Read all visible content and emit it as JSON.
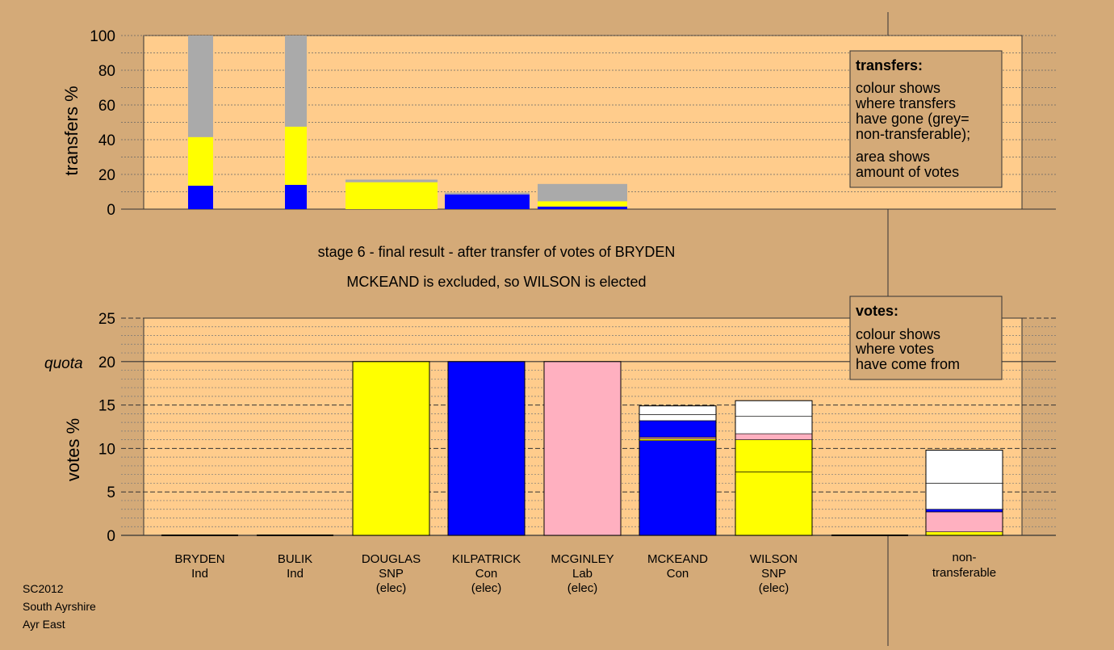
{
  "chart_data": [
    {
      "type": "bar",
      "stacked": true,
      "ylabel": "transfers %",
      "ylim": [
        0,
        100
      ],
      "yticks": [
        "0",
        "20",
        "40",
        "60",
        "80",
        "100"
      ],
      "grid": true,
      "colors": {
        "con": "#0000FF",
        "snp": "#FFFF00",
        "lab": "#FFB0C0",
        "nontransferable": "#AAAAAA"
      },
      "transfers": [
        {
          "column": "BRYDEN",
          "segments": [
            {
              "to": "con",
              "value": 13.5
            },
            {
              "to": "snp",
              "value": 28
            },
            {
              "to": "nontransferable",
              "value": 58.5
            }
          ]
        },
        {
          "column": "BULIK",
          "segments": [
            {
              "to": "con",
              "value": 14
            },
            {
              "to": "snp",
              "value": 33.5
            },
            {
              "to": "nontransferable",
              "value": 52.5
            }
          ]
        },
        {
          "column": "DOUGLAS",
          "segments": [
            {
              "to": "snp",
              "value": 15.5
            },
            {
              "to": "nontransferable",
              "value": 1.5
            }
          ]
        },
        {
          "column": "KILPATRICK",
          "segments": [
            {
              "to": "con",
              "value": 8.5
            },
            {
              "to": "nontransferable",
              "value": 1
            }
          ]
        },
        {
          "column": "MCGINLEY",
          "segments": [
            {
              "to": "con",
              "value": 1.5
            },
            {
              "to": "snp",
              "value": 3
            },
            {
              "to": "nontransferable",
              "value": 10
            }
          ]
        }
      ],
      "legend": {
        "title": "transfers:",
        "lines1": [
          "colour shows",
          "where transfers",
          "have gone (grey=",
          "non-transferable);"
        ],
        "lines2": [
          "area shows",
          "amount of votes"
        ]
      }
    },
    {
      "type": "bar",
      "stacked": true,
      "title_lines": [
        "stage 6 - final result - after transfer of votes of BRYDEN",
        "MCKEAND is excluded, so WILSON is elected"
      ],
      "ylabel": "votes %",
      "ylim": [
        0,
        25
      ],
      "yticks": [
        "0",
        "5",
        "10",
        "15",
        "20",
        "25"
      ],
      "quota_label": "quota",
      "quota": 20,
      "grid": true,
      "candidates": [
        {
          "name": "BRYDEN",
          "party": "Ind",
          "note": "",
          "segments": []
        },
        {
          "name": "BULIK",
          "party": "Ind",
          "note": "",
          "segments": []
        },
        {
          "name": "DOUGLAS",
          "party": "SNP",
          "note": "(elec)",
          "segments": [
            {
              "color": "#FFFF00",
              "value": 20
            }
          ]
        },
        {
          "name": "KILPATRICK",
          "party": "Con",
          "note": "(elec)",
          "segments": [
            {
              "color": "#0000FF",
              "value": 20
            }
          ]
        },
        {
          "name": "MCGINLEY",
          "party": "Lab",
          "note": "(elec)",
          "segments": [
            {
              "color": "#FFB0C0",
              "value": 20
            }
          ]
        },
        {
          "name": "MCKEAND",
          "party": "Con",
          "note": "",
          "segments": [
            {
              "color": "#0000FF",
              "value": 10.9
            },
            {
              "color": "#FFFF00",
              "value": 0.2
            },
            {
              "color": "#FFB0C0",
              "value": 0.2
            },
            {
              "color": "#0000FF",
              "value": 1.9
            },
            {
              "color": "#FFFFFF",
              "value": 0.7
            },
            {
              "color": "#FFFFFF",
              "value": 1.0
            }
          ]
        },
        {
          "name": "WILSON",
          "party": "SNP",
          "note": "(elec)",
          "segments": [
            {
              "color": "#FFFF00",
              "value": 7.3
            },
            {
              "color": "#FFFF00",
              "value": 3.7
            },
            {
              "color": "#FFB0C0",
              "value": 0.7
            },
            {
              "color": "#FFFFFF",
              "value": 2.0
            },
            {
              "color": "#FFFFFF",
              "value": 1.8
            }
          ]
        }
      ],
      "nontransferable": {
        "label_lines": [
          "non-",
          "transferable"
        ],
        "segments": [
          {
            "color": "#FFFF00",
            "value": 0.4
          },
          {
            "color": "#FFB0C0",
            "value": 2.3
          },
          {
            "color": "#0000FF",
            "value": 0.3
          },
          {
            "color": "#FFFFFF",
            "value": 3.0
          },
          {
            "color": "#FFFFFF",
            "value": 3.8
          }
        ]
      },
      "legend": {
        "title": "votes:",
        "lines": [
          "colour shows",
          "where votes",
          "have come from"
        ]
      }
    }
  ],
  "footer": {
    "lines": [
      "SC2012",
      "South Ayrshire",
      "Ayr East"
    ]
  }
}
